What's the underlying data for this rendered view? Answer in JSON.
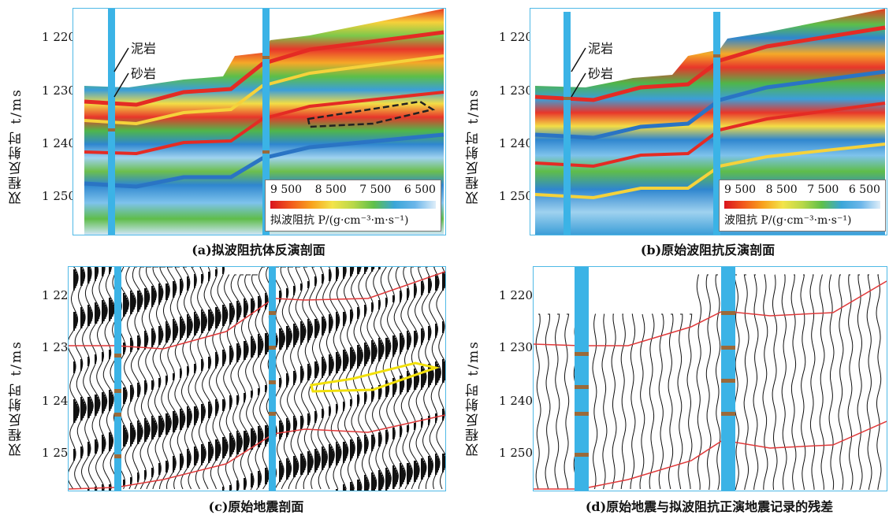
{
  "panels": {
    "a": {
      "caption": "(a)拟波阻抗体反演剖面",
      "colorbar": {
        "ticks": [
          "9 500",
          "8 500",
          "7 500",
          "6 500"
        ],
        "title": "拟波阻抗 P/(g·cm⁻³·m·s⁻¹)"
      },
      "annotations": {
        "mudstone": "泥岩",
        "sandstone": "砂岩"
      }
    },
    "b": {
      "caption": "(b)原始波阻抗反演剖面",
      "colorbar": {
        "ticks": [
          "9 500",
          "8 500",
          "7 500",
          "6 500"
        ],
        "title": "波阻抗 P/(g·cm⁻³·m·s⁻¹)"
      },
      "annotations": {
        "mudstone": "泥岩",
        "sandstone": "砂岩"
      }
    },
    "c": {
      "caption": "(c)原始地震剖面"
    },
    "d": {
      "caption": "(d)原始地震与拟波阻抗正演地震记录的残差"
    }
  },
  "axis": {
    "ylabel": "双程反射时 t/ms",
    "ticks": [
      "1 220",
      "1 230",
      "1 240",
      "1 250"
    ]
  },
  "colors": {
    "frame": "#4fb9e6",
    "well": "#3bb3e6",
    "horizon": "#e0393a",
    "sand_body_outline_a": "#222222",
    "sand_body_outline_c": "#f2e00a"
  }
}
